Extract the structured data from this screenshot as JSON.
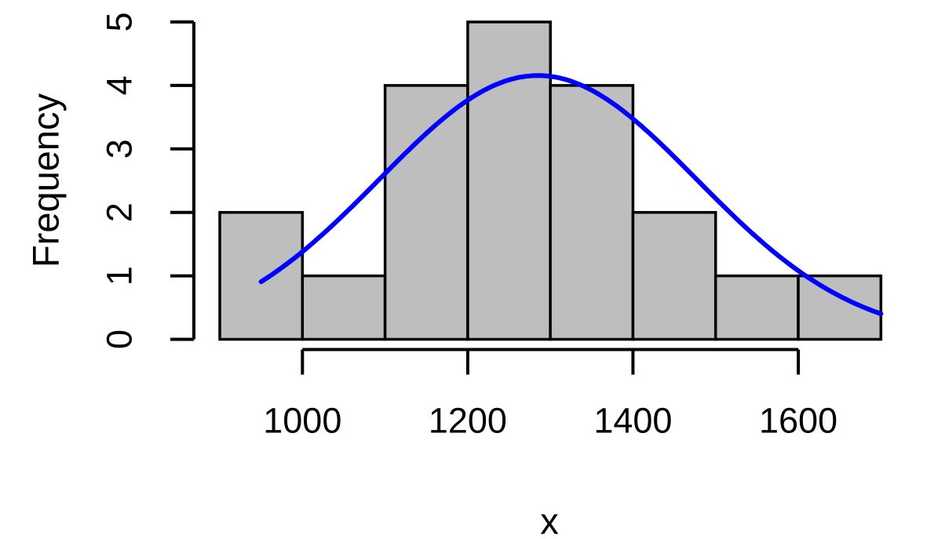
{
  "chart_data": {
    "type": "bar",
    "subtype": "histogram-with-normal-curve",
    "title": "",
    "xlabel": "x",
    "ylabel": "Frequency",
    "xlim": [
      900,
      1700
    ],
    "ylim": [
      0,
      5
    ],
    "grid": false,
    "legend": "none",
    "bin_edges": [
      900,
      1000,
      1100,
      1200,
      1300,
      1400,
      1500,
      1600,
      1700
    ],
    "counts": [
      2,
      1,
      4,
      5,
      4,
      2,
      1,
      1
    ],
    "x_ticks": [
      1000,
      1200,
      1400,
      1600
    ],
    "x_tick_labels": [
      "1000",
      "1200",
      "1400",
      "1600"
    ],
    "y_ticks": [
      0,
      1,
      2,
      3,
      4,
      5
    ],
    "y_tick_labels": [
      "0",
      "1",
      "2",
      "3",
      "4",
      "5"
    ],
    "bar_fill": "#BEBEBE",
    "bar_border": "#000000",
    "axis_color": "#000000",
    "curve": {
      "type": "normal-density-scaled-to-counts",
      "mean": 1285,
      "sd": 192,
      "n": 20,
      "bin_width": 100,
      "x_start": 950,
      "x_end": 1700,
      "peak_value": 4.15,
      "color": "#0000FF"
    }
  }
}
